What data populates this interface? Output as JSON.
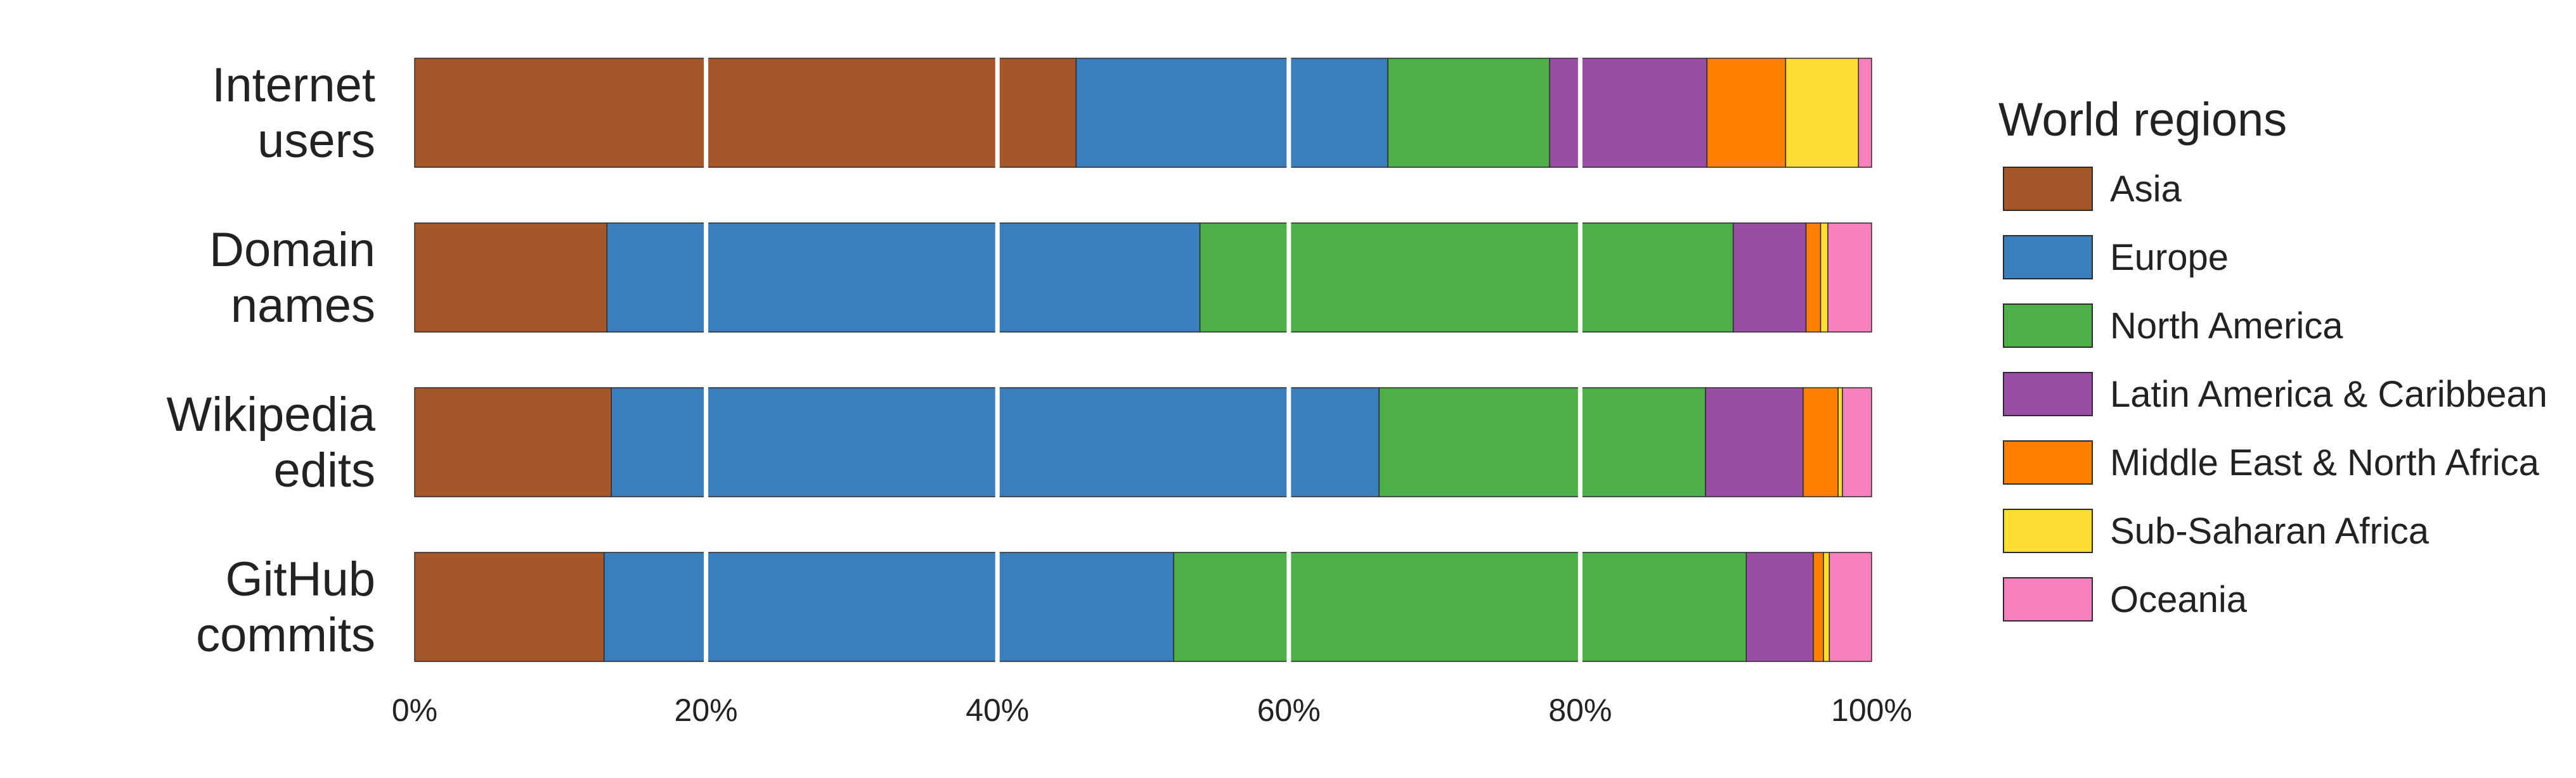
{
  "chart_data": {
    "type": "bar",
    "orientation": "horizontal",
    "stacked": true,
    "normalized": true,
    "categories": [
      [
        "Internet",
        "users"
      ],
      [
        "Domain",
        "names"
      ],
      [
        "Wikipedia",
        "edits"
      ],
      [
        "GitHub",
        "commits"
      ]
    ],
    "series": [
      {
        "name": "Asia",
        "color": "#A6572A",
        "values": [
          45.4,
          13.2,
          13.5,
          13.0
        ]
      },
      {
        "name": "Europe",
        "color": "#3A7FBB",
        "values": [
          21.4,
          40.7,
          52.7,
          39.1
        ]
      },
      {
        "name": "North America",
        "color": "#4EAF4A",
        "values": [
          11.1,
          36.6,
          22.4,
          39.3
        ]
      },
      {
        "name": "Latin America & Caribbean",
        "color": "#984EA3",
        "values": [
          10.8,
          5.0,
          6.7,
          4.6
        ]
      },
      {
        "name": "Middle East & North Africa",
        "color": "#FF7F00",
        "values": [
          5.4,
          1.0,
          2.4,
          0.7
        ]
      },
      {
        "name": "Sub-Saharan Africa",
        "color": "#FFDD33",
        "values": [
          5.0,
          0.5,
          0.3,
          0.4
        ]
      },
      {
        "name": "Oceania",
        "color": "#F781BF",
        "values": [
          0.9,
          3.0,
          2.0,
          2.9
        ]
      }
    ],
    "xlim": [
      0,
      100
    ],
    "xticks": [
      "0%",
      "20%",
      "40%",
      "60%",
      "80%",
      "100%"
    ],
    "grid": {
      "x_major": true,
      "color": "#ffffff"
    },
    "legend": {
      "title": "World regions",
      "placement": "right"
    }
  }
}
